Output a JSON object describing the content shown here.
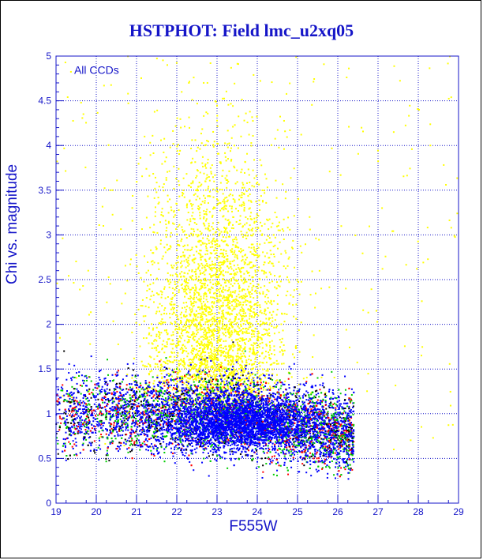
{
  "chart_data": {
    "type": "scatter",
    "title": "HSTPHOT: Field lmc_u2xq05",
    "xlabel": "F555W",
    "ylabel": "Chi vs. magnitude",
    "annotation": "All CCDs",
    "xlim": [
      19,
      29
    ],
    "ylim": [
      0,
      5
    ],
    "x_ticks": [
      "19",
      "20",
      "21",
      "22",
      "23",
      "24",
      "25",
      "26",
      "27",
      "28",
      "29"
    ],
    "y_ticks": [
      "0",
      "0.5",
      "1",
      "1.5",
      "2",
      "2.5",
      "3",
      "3.5",
      "4",
      "4.5",
      "5"
    ],
    "grid": true,
    "series": [
      {
        "color": "#ffff00",
        "points": [
          [
            22.1,
            4.2
          ],
          [
            22.4,
            3.6
          ],
          [
            22.8,
            3.1
          ],
          [
            23.2,
            2.7
          ],
          [
            22.6,
            2.4
          ],
          [
            23.5,
            2.2
          ],
          [
            21.6,
            2.9
          ],
          [
            24.1,
            2.0
          ],
          [
            22.3,
            4.7
          ],
          [
            23.0,
            3.4
          ],
          [
            20.4,
            3.5
          ],
          [
            19.8,
            2.6
          ],
          [
            25.3,
            3.2
          ],
          [
            26.2,
            2.4
          ],
          [
            27.1,
            3.3
          ],
          [
            28.3,
            4.0
          ],
          [
            21.2,
            4.1
          ],
          [
            24.6,
            1.8
          ],
          [
            22.9,
            1.9
          ],
          [
            23.8,
            2.5
          ]
        ]
      },
      {
        "color": "#0000ff",
        "points": [
          [
            23.1,
            1.0
          ],
          [
            23.6,
            0.9
          ],
          [
            24.2,
            0.95
          ],
          [
            24.8,
            0.8
          ],
          [
            25.1,
            0.7
          ],
          [
            22.5,
            1.2
          ],
          [
            24.5,
            1.1
          ],
          [
            25.6,
            0.85
          ],
          [
            21.8,
            1.3
          ],
          [
            23.9,
            1.4
          ],
          [
            20.7,
            1.0
          ],
          [
            19.6,
            0.8
          ],
          [
            24.9,
            0.6
          ],
          [
            22.9,
            0.75
          ],
          [
            25.9,
            0.9
          ]
        ]
      },
      {
        "color": "#00cc00",
        "points": [
          [
            22.0,
            1.5
          ],
          [
            23.0,
            1.3
          ],
          [
            24.0,
            1.2
          ],
          [
            25.0,
            1.0
          ],
          [
            26.0,
            0.8
          ],
          [
            20.5,
            1.1
          ],
          [
            21.4,
            0.9
          ],
          [
            25.5,
            1.4
          ],
          [
            19.4,
            1.3
          ],
          [
            23.7,
            1.7
          ]
        ]
      },
      {
        "color": "#ff0000",
        "points": [
          [
            21.0,
            0.9
          ],
          [
            22.2,
            0.8
          ],
          [
            24.3,
            0.6
          ],
          [
            25.4,
            0.5
          ],
          [
            26.1,
            0.65
          ],
          [
            19.8,
            0.9
          ],
          [
            20.9,
            1.2
          ],
          [
            25.8,
            0.55
          ]
        ]
      },
      {
        "color": "#000000",
        "points": [
          [
            22.7,
            1.6
          ],
          [
            23.4,
            1.8
          ],
          [
            24.4,
            1.3
          ],
          [
            21.5,
            1.1
          ],
          [
            25.2,
            1.2
          ],
          [
            19.2,
            1.7
          ]
        ]
      }
    ]
  }
}
